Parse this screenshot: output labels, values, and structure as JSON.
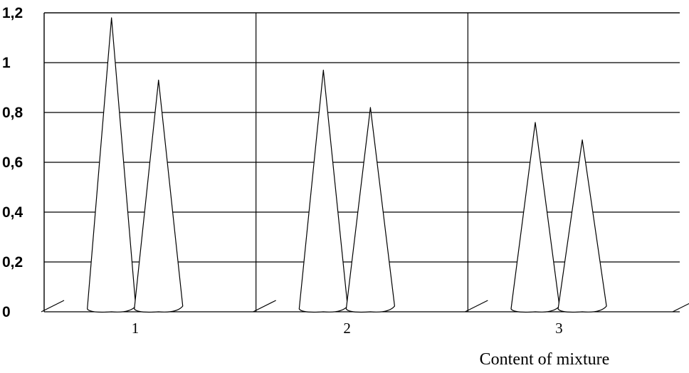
{
  "chart_data": {
    "type": "bar",
    "bar_shape": "cone",
    "categories": [
      "1",
      "2",
      "3"
    ],
    "series": [
      {
        "values": [
          1.18,
          0.97,
          0.76
        ]
      },
      {
        "values": [
          0.93,
          0.82,
          0.69
        ]
      }
    ],
    "y_ticks": [
      "0",
      "0,2",
      "0,4",
      "0,6",
      "0,8",
      "1",
      "1,2"
    ],
    "ylim": [
      0,
      1.2
    ],
    "xlabel": "Content of mixture",
    "ylabel": "",
    "title": "",
    "grid": true,
    "legend": "none",
    "colors": {
      "line": "#000000",
      "background": "#ffffff",
      "fill": "#ffffff"
    }
  }
}
